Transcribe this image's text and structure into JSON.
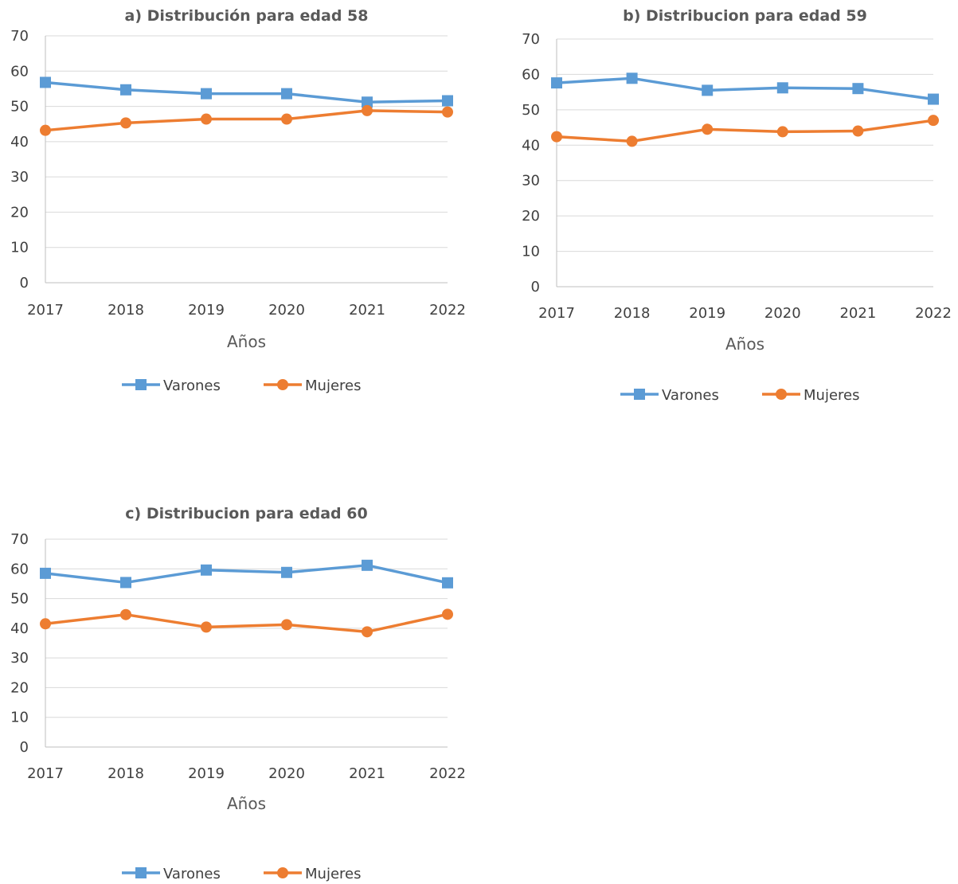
{
  "chart_data": [
    {
      "type": "line",
      "title": "a) Distribución para edad 58",
      "xlabel": "Años",
      "ylabel": "",
      "categories": [
        "2017",
        "2018",
        "2019",
        "2020",
        "2021",
        "2022"
      ],
      "ylim": [
        0,
        70
      ],
      "yticks": [
        0,
        10,
        20,
        30,
        40,
        50,
        60,
        70
      ],
      "grid": true,
      "legend": "bottom",
      "series": [
        {
          "name": "Varones",
          "color": "#5b9bd5",
          "marker": "square",
          "values": [
            56.8,
            54.7,
            53.6,
            53.6,
            51.2,
            51.6
          ]
        },
        {
          "name": "Mujeres",
          "color": "#ed7d31",
          "marker": "circle",
          "values": [
            43.2,
            45.3,
            46.4,
            46.4,
            48.8,
            48.4
          ]
        }
      ]
    },
    {
      "type": "line",
      "title": "b) Distribucion para edad 59",
      "xlabel": "Años",
      "ylabel": "",
      "categories": [
        "2017",
        "2018",
        "2019",
        "2020",
        "2021",
        "2022"
      ],
      "ylim": [
        0,
        70
      ],
      "yticks": [
        0,
        10,
        20,
        30,
        40,
        50,
        60,
        70
      ],
      "grid": true,
      "legend": "bottom",
      "series": [
        {
          "name": "Varones",
          "color": "#5b9bd5",
          "marker": "square",
          "values": [
            57.6,
            58.9,
            55.5,
            56.2,
            56.0,
            53.0
          ]
        },
        {
          "name": "Mujeres",
          "color": "#ed7d31",
          "marker": "circle",
          "values": [
            42.4,
            41.1,
            44.5,
            43.8,
            44.0,
            47.0
          ]
        }
      ]
    },
    {
      "type": "line",
      "title": "c) Distribucion para edad 60",
      "xlabel": "Años",
      "ylabel": "",
      "categories": [
        "2017",
        "2018",
        "2019",
        "2020",
        "2021",
        "2022"
      ],
      "ylim": [
        0,
        70
      ],
      "yticks": [
        0,
        10,
        20,
        30,
        40,
        50,
        60,
        70
      ],
      "grid": true,
      "legend": "bottom",
      "series": [
        {
          "name": "Varones",
          "color": "#5b9bd5",
          "marker": "square",
          "values": [
            58.5,
            55.4,
            59.6,
            58.8,
            61.2,
            55.3
          ]
        },
        {
          "name": "Mujeres",
          "color": "#ed7d31",
          "marker": "circle",
          "values": [
            41.5,
            44.6,
            40.4,
            41.2,
            38.8,
            44.7
          ]
        }
      ]
    }
  ]
}
